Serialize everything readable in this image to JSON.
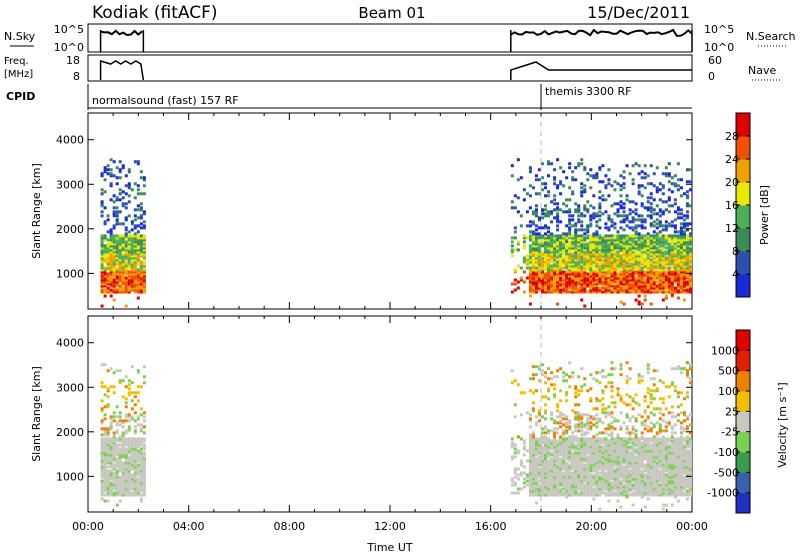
{
  "header": {
    "station": "Kodiak (fitACF)",
    "beam": "Beam 01",
    "date": "15/Dec/2011"
  },
  "top_panels": {
    "nsky_label": "N.Sky",
    "nsearch_label": "N.Search",
    "nsky_ticks": [
      "10^5",
      "10^0"
    ],
    "nsearch_ticks": [
      "10^5",
      "10^0"
    ],
    "freq_label_1": "Freq.",
    "freq_label_2": "[MHz]",
    "freq_ticks": [
      "18",
      "8"
    ],
    "nave_label": "Nave",
    "nave_ticks": [
      "60",
      "0"
    ],
    "cpid_label": "CPID",
    "cpid_segments": [
      {
        "name": "normalsound (fast) 157 RF",
        "start_hour": 0
      },
      {
        "name": "themis 3300 RF",
        "start_hour": 18
      }
    ]
  },
  "chart_data": [
    {
      "type": "heatmap",
      "name": "power",
      "ylabel": "Slant Range [km]",
      "xlabel": "",
      "xlim": [
        0,
        24
      ],
      "ylim": [
        200,
        4600
      ],
      "yticks": [
        1000,
        2000,
        3000,
        4000
      ],
      "colorbar_label": "Power [dB]",
      "colorbar_ticks": [
        4,
        8,
        12,
        16,
        20,
        24,
        28
      ],
      "colorbar_range": [
        0,
        32
      ],
      "colors": [
        "#1a2ad8",
        "#2f4fae",
        "#3a8a5a",
        "#4caf5a",
        "#e8e800",
        "#f0a000",
        "#f05000",
        "#e00000"
      ],
      "data_intervals_hours": [
        [
          0.5,
          2.2
        ],
        [
          16.8,
          24
        ]
      ]
    },
    {
      "type": "heatmap",
      "name": "velocity",
      "ylabel": "Slant Range [km]",
      "xlabel": "Time UT",
      "xlim": [
        0,
        24
      ],
      "ylim": [
        200,
        4600
      ],
      "yticks": [
        1000,
        2000,
        3000,
        4000
      ],
      "xticks": [
        "00:00",
        "04:00",
        "08:00",
        "12:00",
        "16:00",
        "20:00",
        "00:00"
      ],
      "colorbar_label": "Velocity [m s⁻¹]",
      "colorbar_ticks": [
        1000,
        500,
        100,
        25,
        -25,
        -100,
        -500,
        -1000
      ],
      "colors": [
        "#2030c0",
        "#3a60b0",
        "#3a9a50",
        "#7ad050",
        "#c8c8c0",
        "#f0c000",
        "#f08000",
        "#e02000",
        "#e00000"
      ],
      "data_intervals_hours": [
        [
          0.5,
          2.2
        ],
        [
          16.8,
          24
        ]
      ]
    }
  ]
}
